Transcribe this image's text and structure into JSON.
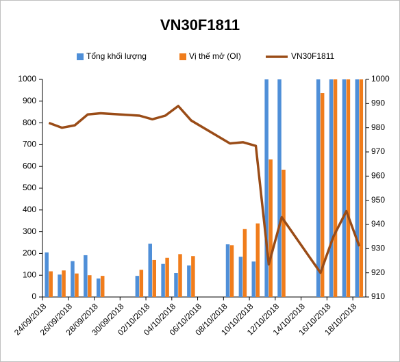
{
  "chart_data": {
    "type": "bar-line",
    "title": "VN30F1811",
    "x": [
      "24/09/2018",
      "25/09/2018",
      "26/09/2018",
      "27/09/2018",
      "28/09/2018",
      "01/10/2018",
      "02/10/2018",
      "03/10/2018",
      "04/10/2018",
      "05/10/2018",
      "08/10/2018",
      "09/10/2018",
      "10/10/2018",
      "11/10/2018",
      "12/10/2018",
      "15/10/2018",
      "16/10/2018",
      "17/10/2018",
      "18/10/2018"
    ],
    "xticks": [
      "24/09/2018",
      "26/09/2018",
      "28/09/2018",
      "30/09/2018",
      "02/10/2018",
      "04/10/2018",
      "06/10/2018",
      "08/10/2018",
      "10/10/2018",
      "12/10/2018",
      "14/10/2018",
      "16/10/2018",
      "18/10/2018"
    ],
    "series": [
      {
        "name": "Tổng khối lượng",
        "color": "#4f8fd8",
        "type": "bar",
        "values": [
          205,
          103,
          165,
          192,
          85,
          97,
          245,
          152,
          110,
          145,
          242,
          185,
          163,
          1000,
          1000,
          1000,
          1000,
          1000,
          1000
        ]
      },
      {
        "name": "Vị thế mở (OI)",
        "color": "#f07d1c",
        "type": "bar",
        "values": [
          118,
          122,
          108,
          100,
          97,
          125,
          170,
          180,
          197,
          188,
          238,
          312,
          338,
          632,
          585,
          937,
          1000,
          1000,
          1000
        ]
      },
      {
        "name": "VN30F1811",
        "color": "#9a4c17",
        "type": "line",
        "axis": "y2",
        "values": [
          982,
          980,
          981,
          985.5,
          986,
          985,
          983.5,
          985,
          989,
          983,
          973.5,
          974,
          972.5,
          923.5,
          943,
          920,
          935,
          945.5,
          931
        ]
      }
    ],
    "ylim": [
      0,
      1000
    ],
    "yticks": [
      0,
      100,
      200,
      300,
      400,
      500,
      600,
      700,
      800,
      900,
      1000
    ],
    "y2lim": [
      910,
      1000
    ],
    "y2ticks": [
      910,
      920,
      930,
      940,
      950,
      960,
      970,
      980,
      990,
      1000
    ],
    "grid": false
  }
}
